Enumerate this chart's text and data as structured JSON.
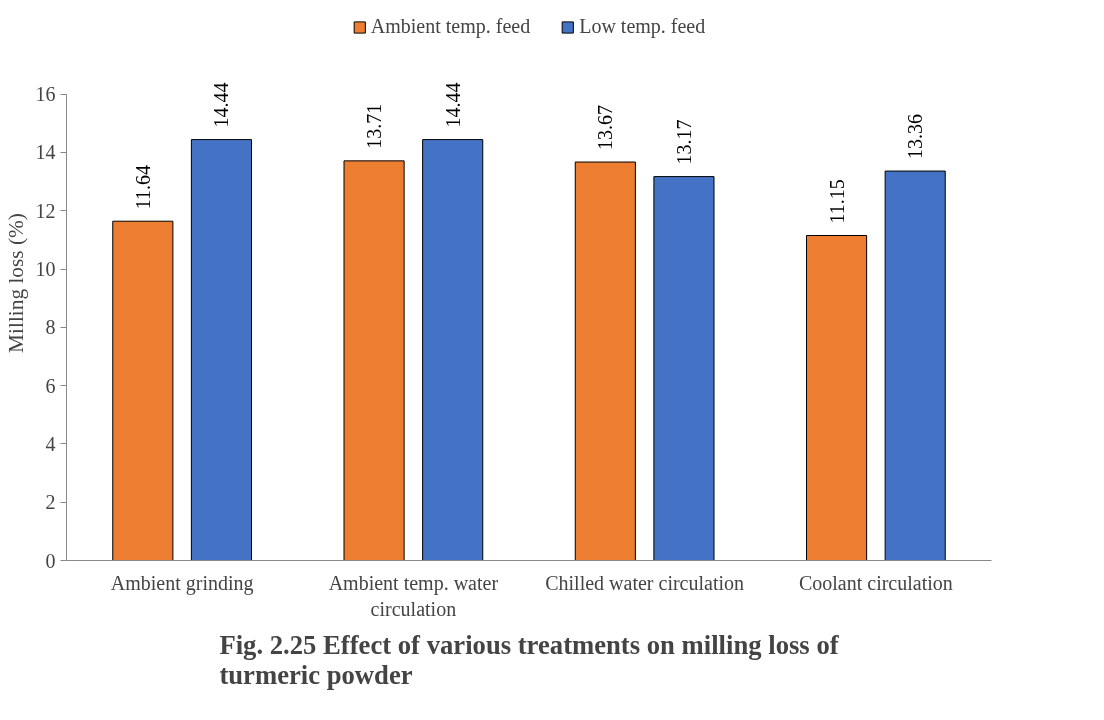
{
  "chart_data": {
    "type": "bar",
    "title": "Fig. 2.25 Effect of various treatments on milling loss of turmeric powder",
    "ylabel": "Milling loss (%)",
    "categories": [
      "Ambient grinding",
      "Ambient temp. water circulation",
      "Chilled water circulation",
      "Coolant circulation"
    ],
    "series": [
      {
        "name": "Ambient temp. feed",
        "color": "#ed7d31",
        "values": [
          11.64,
          13.71,
          13.67,
          11.15
        ]
      },
      {
        "name": "Low temp. feed",
        "color": "#4472c4",
        "values": [
          14.44,
          14.44,
          13.17,
          13.36
        ]
      }
    ],
    "ylim": [
      0,
      16
    ],
    "yticks": [
      0,
      2,
      4,
      6,
      8,
      10,
      12,
      14,
      16
    ],
    "data_labels": true,
    "legend": "top",
    "grid": false
  }
}
